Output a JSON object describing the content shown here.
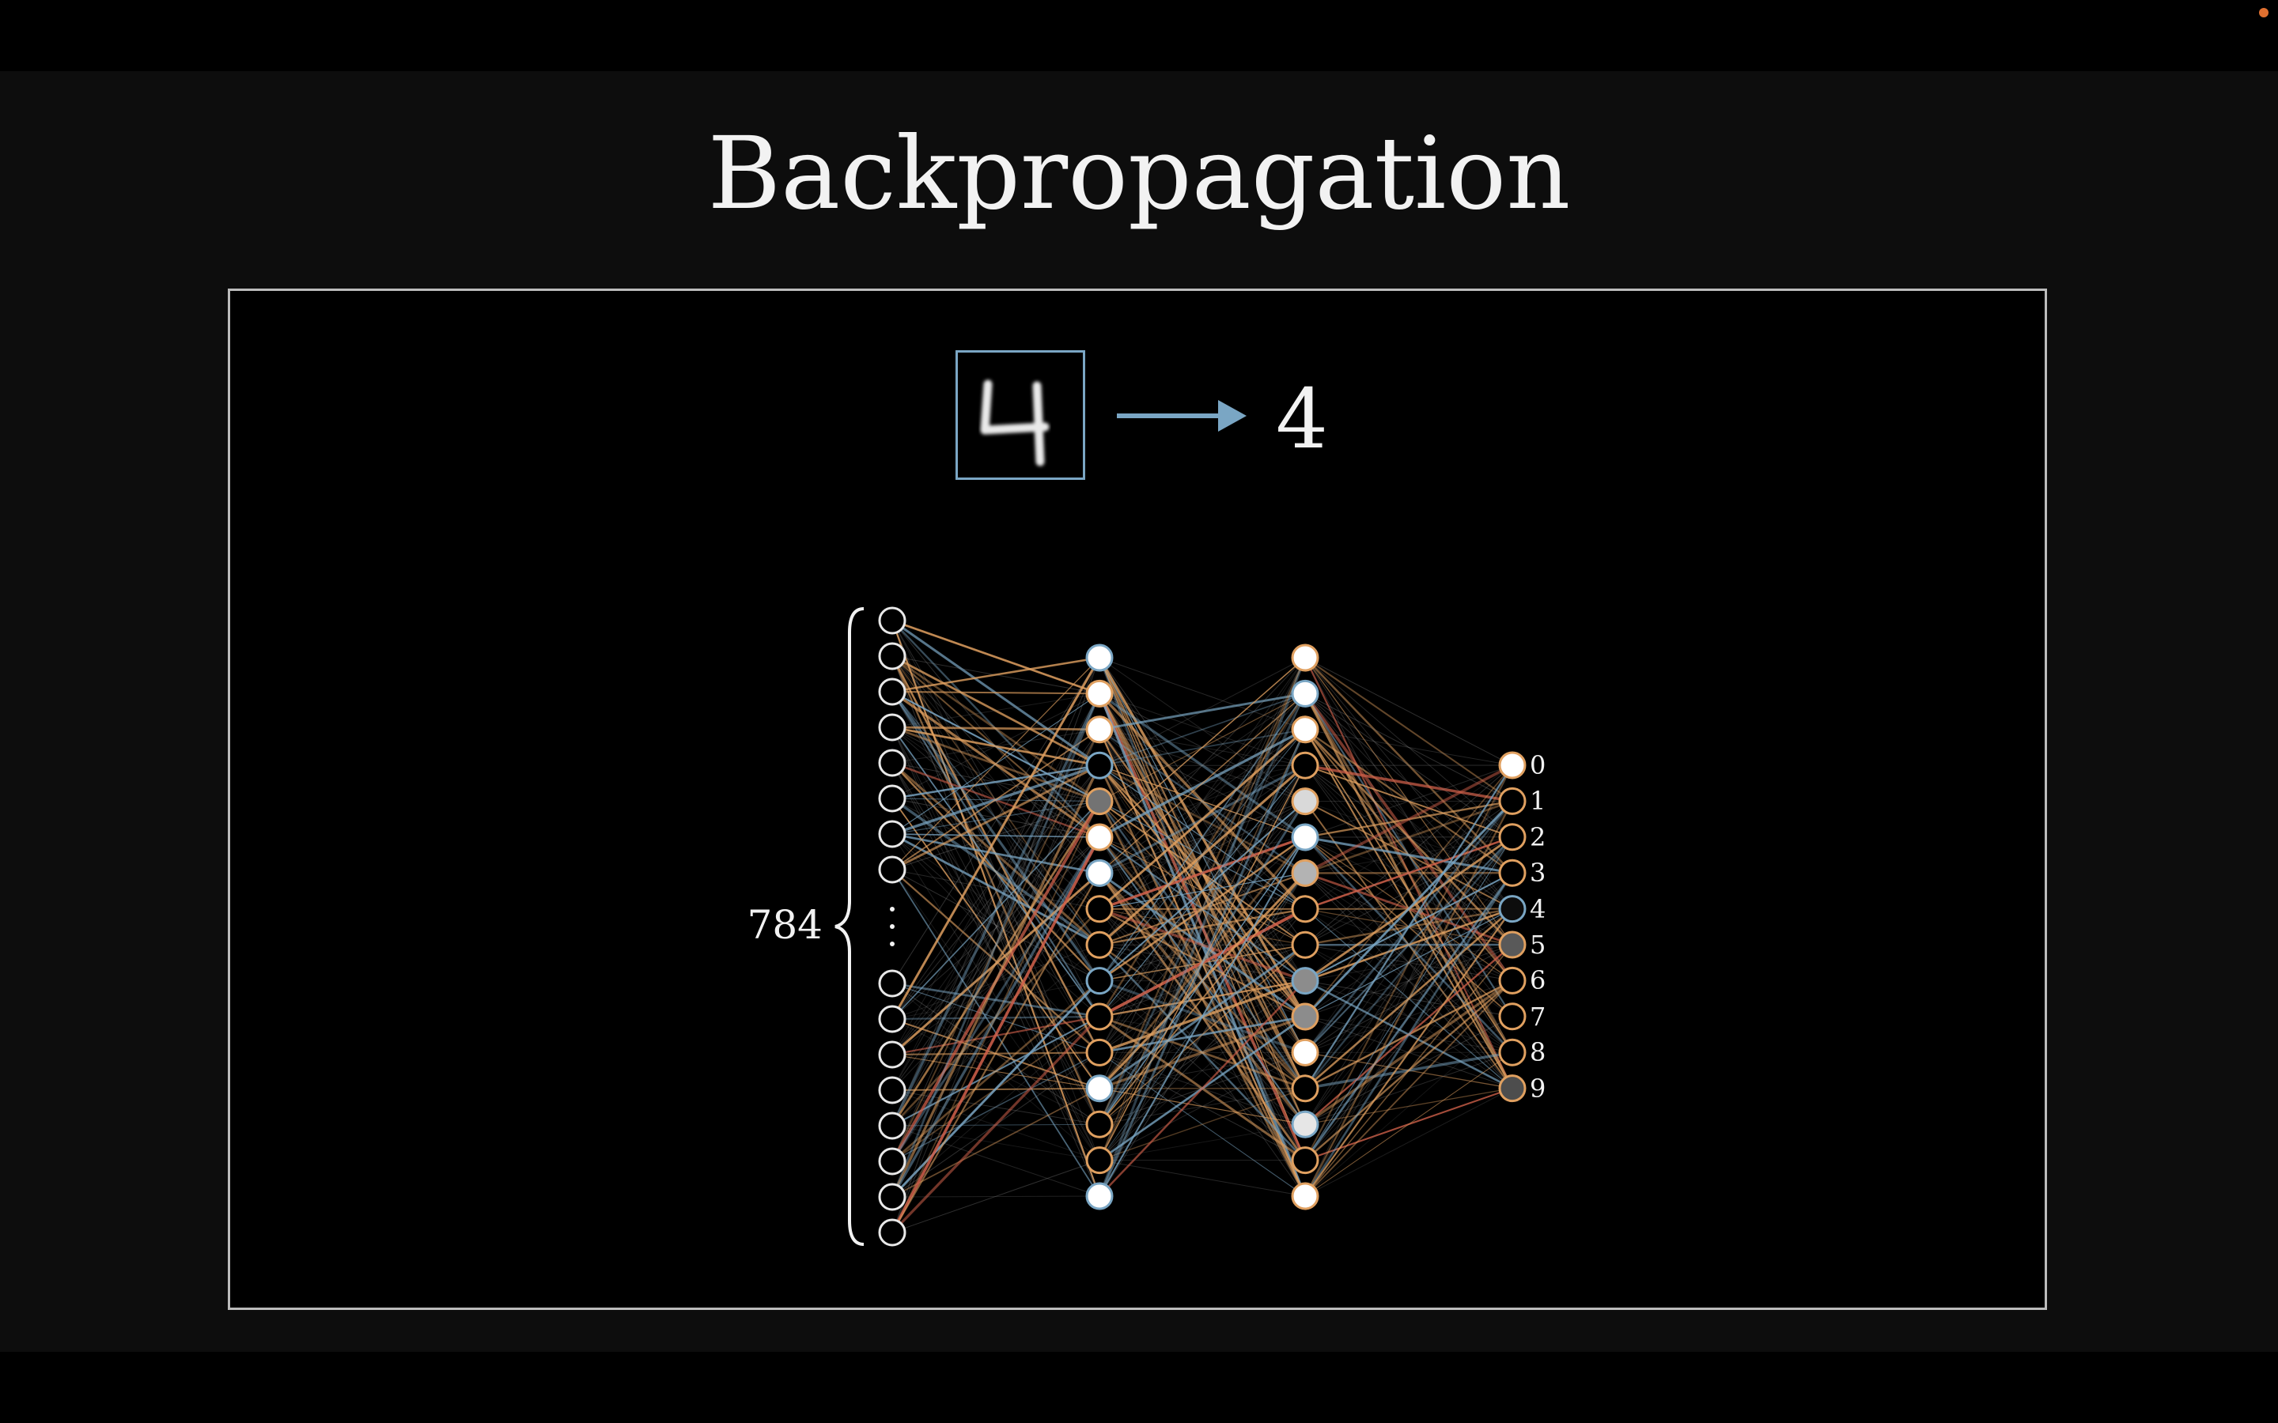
{
  "title": "Backpropagation",
  "input_label": "4",
  "input_neuron_count": "784",
  "output_labels": [
    "0",
    "1",
    "2",
    "3",
    "4",
    "5",
    "6",
    "7",
    "8",
    "9"
  ],
  "colors": {
    "background": "#0d0d0d",
    "frame_border": "#bcbcbc",
    "accent_blue": "#7aa6c4",
    "accent_orange": "#e0a060",
    "accent_red": "#d0604a",
    "neuron_stroke": "#e8e8e8"
  },
  "network": {
    "layer1_activations": [
      1,
      1,
      1,
      0,
      0.45,
      1,
      1,
      0,
      0,
      0,
      0,
      0,
      1,
      0,
      0,
      1
    ],
    "layer2_activations": [
      1,
      1,
      1,
      0,
      0.85,
      1,
      0.7,
      0,
      0,
      0.55,
      0.55,
      1,
      0,
      0.9,
      0,
      1
    ],
    "output_activations": [
      1,
      0,
      0,
      0,
      0.05,
      0.35,
      0,
      0,
      0,
      0.3
    ]
  }
}
